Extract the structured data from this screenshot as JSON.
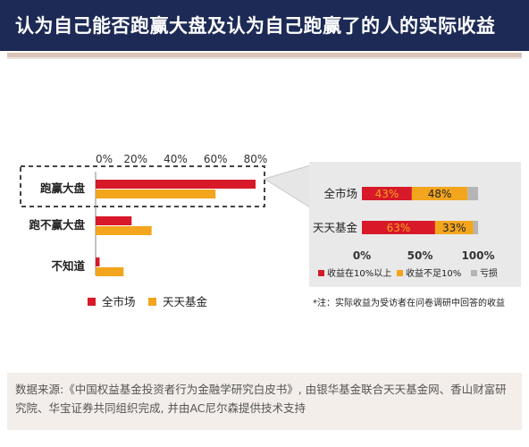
{
  "title": "认为自己能否跑赢大盘及认为自己跑赢了的人的实际收益",
  "source": "数据来源:《中国权益基金投资者行为金融学研究白皮书》, 由银华基金联合天天基金网、香山财富研究院、华宝证券共同组织完成, 并由AC尼尔森提供技术支持",
  "colors": {
    "red": "#d7192a",
    "orange": "#f2a51d",
    "gray": "#b5b5b5",
    "navy": "#1c2a55"
  },
  "chart_data": [
    {
      "type": "bar",
      "orientation": "horizontal",
      "categories": [
        "跑赢大盘",
        "跑不赢大盘",
        "不知道"
      ],
      "series": [
        {
          "name": "全市场",
          "values": [
            80,
            18,
            2
          ],
          "color": "#d7192a"
        },
        {
          "name": "天天基金",
          "values": [
            60,
            28,
            14
          ],
          "color": "#f2a51d"
        }
      ],
      "xlim": [
        0,
        80
      ],
      "ticks": [
        "0%",
        "20%",
        "40%",
        "60%",
        "80%"
      ],
      "legend_position": "bottom-left"
    },
    {
      "type": "bar",
      "orientation": "horizontal",
      "stacked": true,
      "categories": [
        "全市场",
        "天天基金"
      ],
      "series": [
        {
          "name": "收益在10%以上",
          "values": [
            43,
            63
          ],
          "labels": [
            "43%",
            "63%"
          ],
          "color": "#d7192a"
        },
        {
          "name": "收益不足10%",
          "values": [
            48,
            33
          ],
          "labels": [
            "48%",
            "33%"
          ],
          "color": "#f2a51d"
        },
        {
          "name": "亏损",
          "values": [
            9,
            4
          ],
          "color": "#b5b5b5"
        }
      ],
      "xlim": [
        0,
        100
      ],
      "ticks": [
        "0%",
        "50%",
        "100%"
      ],
      "legend_position": "bottom"
    }
  ],
  "note": "*注：实际收益为受访者在问卷调研中回答的收益"
}
